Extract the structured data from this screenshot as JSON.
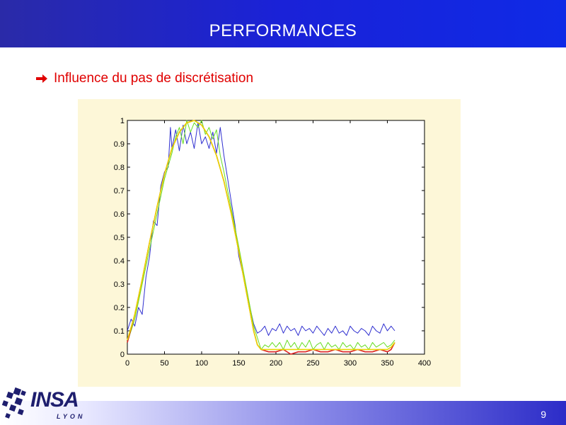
{
  "slide": {
    "title": "PERFORMANCES",
    "bullet_text": "Influence du pas de discrétisation",
    "page_number": "9",
    "logo_name": "INSA",
    "logo_sub": "LYON"
  },
  "colors": {
    "header": "#1a22d8",
    "bullet_text": "#e00000",
    "chart_background": "#fdf7d8",
    "series_blue": "#3030d0",
    "series_green": "#66dd22",
    "series_red": "#dd2222",
    "series_yellow": "#e8d800"
  },
  "icons": {
    "bullet": "arrow-right-icon",
    "logo": "insa-logo-icon"
  },
  "chart_data": {
    "type": "line",
    "title": "",
    "xlabel": "",
    "ylabel": "",
    "xlim": [
      0,
      400
    ],
    "ylim": [
      0,
      1
    ],
    "x_ticks": [
      "0",
      "50",
      "100",
      "150",
      "200",
      "250",
      "300",
      "350",
      "400"
    ],
    "y_ticks": [
      "0",
      "0.1",
      "0.2",
      "0.3",
      "0.4",
      "0.5",
      "0.6",
      "0.7",
      "0.8",
      "0.9",
      "1"
    ],
    "grid": false,
    "series": [
      {
        "color": "#3030d0",
        "x": [
          0,
          5,
          10,
          15,
          20,
          25,
          30,
          35,
          40,
          45,
          50,
          55,
          58,
          60,
          65,
          70,
          75,
          80,
          85,
          90,
          95,
          100,
          105,
          110,
          115,
          120,
          125,
          130,
          135,
          140,
          145,
          150,
          155,
          160,
          165,
          170,
          175,
          180,
          185,
          190,
          195,
          200,
          205,
          210,
          215,
          220,
          225,
          230,
          235,
          240,
          245,
          250,
          255,
          260,
          265,
          270,
          275,
          280,
          285,
          290,
          295,
          300,
          305,
          310,
          315,
          320,
          325,
          330,
          335,
          340,
          345,
          350,
          355,
          360
        ],
        "y": [
          0.1,
          0.15,
          0.12,
          0.2,
          0.17,
          0.33,
          0.42,
          0.57,
          0.55,
          0.72,
          0.78,
          0.8,
          0.97,
          0.88,
          0.96,
          0.87,
          0.98,
          0.9,
          0.95,
          0.88,
          0.99,
          0.9,
          0.93,
          0.88,
          0.95,
          0.86,
          0.97,
          0.85,
          0.75,
          0.65,
          0.55,
          0.42,
          0.35,
          0.28,
          0.2,
          0.13,
          0.09,
          0.1,
          0.12,
          0.08,
          0.11,
          0.1,
          0.13,
          0.09,
          0.12,
          0.1,
          0.11,
          0.08,
          0.12,
          0.1,
          0.11,
          0.09,
          0.12,
          0.1,
          0.08,
          0.11,
          0.09,
          0.12,
          0.09,
          0.1,
          0.08,
          0.12,
          0.1,
          0.09,
          0.11,
          0.1,
          0.08,
          0.12,
          0.1,
          0.09,
          0.13,
          0.1,
          0.12,
          0.1
        ]
      },
      {
        "color": "#66dd22",
        "x": [
          0,
          10,
          20,
          30,
          40,
          50,
          60,
          65,
          70,
          75,
          80,
          85,
          90,
          95,
          100,
          105,
          110,
          115,
          120,
          125,
          130,
          140,
          150,
          160,
          170,
          175,
          180,
          185,
          190,
          195,
          200,
          205,
          210,
          215,
          220,
          225,
          230,
          235,
          240,
          245,
          250,
          255,
          260,
          265,
          270,
          275,
          280,
          285,
          290,
          295,
          300,
          305,
          310,
          315,
          320,
          325,
          330,
          335,
          340,
          345,
          350,
          355,
          360
        ],
        "y": [
          0.05,
          0.15,
          0.3,
          0.45,
          0.6,
          0.75,
          0.86,
          0.93,
          0.97,
          0.9,
          1.0,
          0.95,
          0.99,
          0.97,
          1.0,
          0.94,
          0.97,
          0.92,
          0.96,
          0.85,
          0.78,
          0.62,
          0.46,
          0.29,
          0.12,
          0.07,
          0.02,
          0.04,
          0.03,
          0.05,
          0.03,
          0.05,
          0.02,
          0.06,
          0.03,
          0.05,
          0.02,
          0.05,
          0.03,
          0.06,
          0.02,
          0.04,
          0.05,
          0.02,
          0.05,
          0.03,
          0.04,
          0.02,
          0.05,
          0.03,
          0.04,
          0.02,
          0.05,
          0.03,
          0.04,
          0.02,
          0.05,
          0.03,
          0.04,
          0.05,
          0.03,
          0.04,
          0.06
        ]
      },
      {
        "color": "#dd2222",
        "x": [
          0,
          10,
          20,
          30,
          40,
          50,
          60,
          70,
          80,
          90,
          100,
          110,
          120,
          130,
          140,
          150,
          160,
          170,
          175,
          180,
          190,
          200,
          210,
          220,
          230,
          240,
          250,
          260,
          270,
          280,
          290,
          300,
          310,
          320,
          330,
          340,
          350,
          355,
          360
        ],
        "y": [
          0.05,
          0.17,
          0.32,
          0.48,
          0.63,
          0.77,
          0.88,
          0.95,
          0.99,
          1.0,
          0.98,
          0.93,
          0.85,
          0.74,
          0.6,
          0.44,
          0.27,
          0.1,
          0.04,
          0.02,
          0.01,
          0.01,
          0.02,
          0.0,
          0.01,
          0.01,
          0.02,
          0.01,
          0.01,
          0.02,
          0.01,
          0.01,
          0.02,
          0.01,
          0.01,
          0.02,
          0.01,
          0.02,
          0.05
        ]
      },
      {
        "color": "#e8d800",
        "x": [
          0,
          10,
          20,
          30,
          40,
          50,
          60,
          70,
          80,
          90,
          100,
          110,
          120,
          130,
          140,
          150,
          160,
          170,
          175,
          180,
          190,
          200,
          210,
          220,
          230,
          240,
          250,
          260,
          270,
          280,
          290,
          300,
          310,
          320,
          330,
          340,
          350,
          355,
          360
        ],
        "y": [
          0.06,
          0.17,
          0.32,
          0.48,
          0.63,
          0.77,
          0.88,
          0.95,
          0.99,
          1.0,
          0.98,
          0.93,
          0.85,
          0.74,
          0.6,
          0.44,
          0.27,
          0.1,
          0.04,
          0.02,
          0.02,
          0.02,
          0.02,
          0.02,
          0.02,
          0.02,
          0.02,
          0.02,
          0.02,
          0.02,
          0.02,
          0.02,
          0.02,
          0.02,
          0.02,
          0.02,
          0.02,
          0.03,
          0.05
        ]
      }
    ]
  }
}
